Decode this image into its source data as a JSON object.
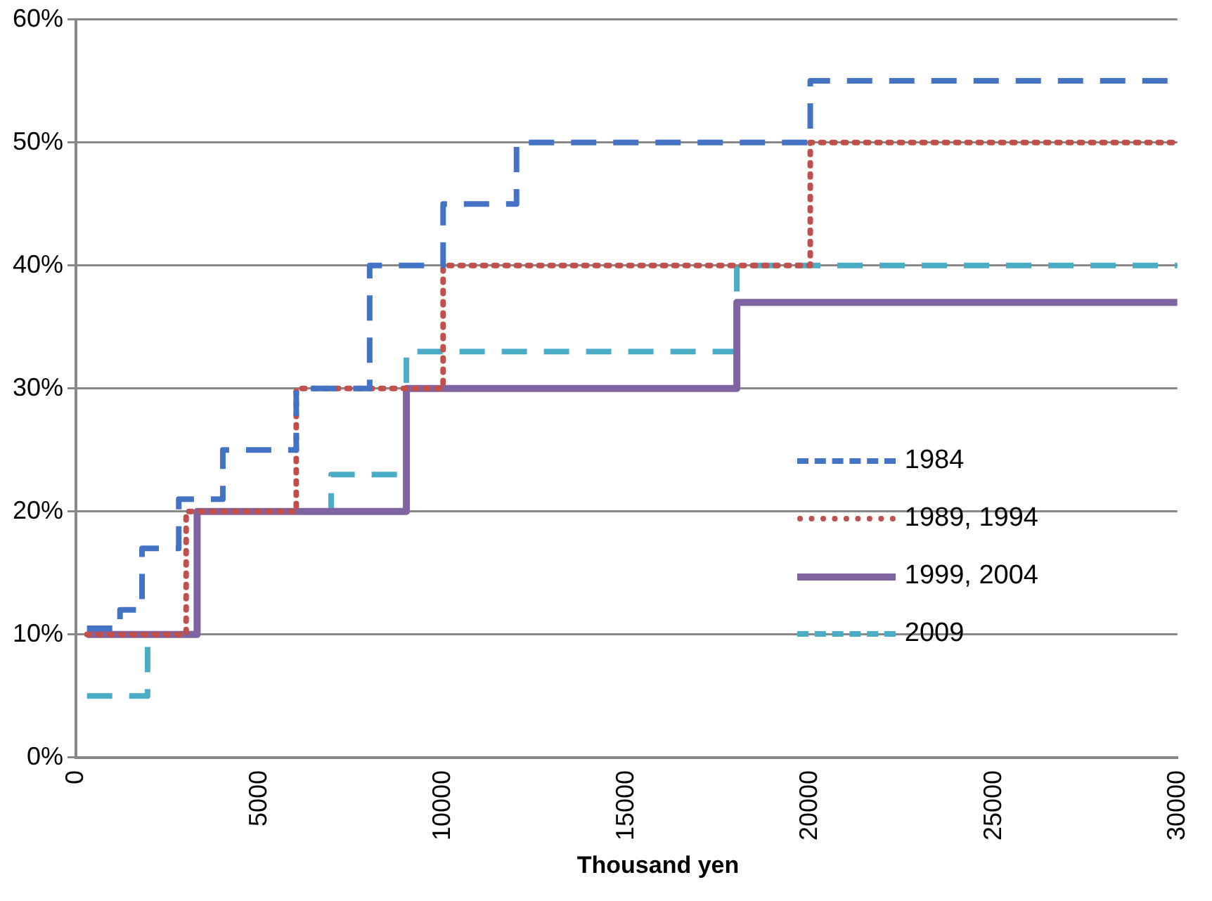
{
  "chart_data": {
    "type": "step",
    "xlabel": "Thousand yen",
    "xlim": [
      0,
      30000
    ],
    "xticks": [
      0,
      5000,
      10000,
      15000,
      20000,
      25000,
      30000
    ],
    "ylim": [
      0,
      60
    ],
    "yticks": [
      {
        "value": 0,
        "label": "0%"
      },
      {
        "value": 10,
        "label": "10%"
      },
      {
        "value": 20,
        "label": "20%"
      },
      {
        "value": 30,
        "label": "30%"
      },
      {
        "value": 40,
        "label": "40%"
      },
      {
        "value": 50,
        "label": "50%"
      },
      {
        "value": 60,
        "label": "60%"
      }
    ],
    "grid": "y",
    "legend": "right",
    "marker": "none",
    "series": [
      {
        "name": "1984",
        "color": "#4472c4",
        "line_style": "dashed",
        "x": [
          300,
          1200,
          1800,
          2800,
          4000,
          6000,
          8000,
          10000,
          12000,
          20000,
          30000
        ],
        "values": [
          10.5,
          12,
          17,
          21,
          25,
          30,
          40,
          45,
          50,
          55,
          55
        ]
      },
      {
        "name": "1989, 1994",
        "color": "#c0504d",
        "line_style": "dotted",
        "x": [
          300,
          3000,
          6000,
          10000,
          20000,
          30000
        ],
        "values": [
          10,
          20,
          30,
          40,
          50,
          50
        ]
      },
      {
        "name": "1999, 2004",
        "color": "#8064a2",
        "line_style": "solid",
        "x": [
          300,
          3300,
          9000,
          18000,
          30000
        ],
        "values": [
          10,
          20,
          30,
          37,
          37
        ]
      },
      {
        "name": "2009",
        "color": "#4bacc6",
        "line_style": "dashed",
        "x": [
          300,
          1950,
          3300,
          6950,
          9000,
          18000,
          30000
        ],
        "values": [
          5,
          10,
          20,
          23,
          33,
          40,
          40
        ]
      }
    ]
  }
}
